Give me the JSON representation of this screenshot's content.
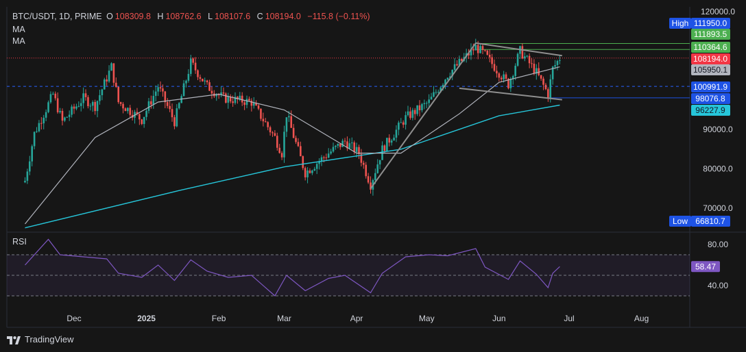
{
  "header": {
    "symbol": "BTC/USDT, 1D, PRIME",
    "o_label": "O",
    "o_val": "108309.8",
    "h_label": "H",
    "h_val": "108762.6",
    "l_label": "L",
    "l_val": "108107.6",
    "c_label": "C",
    "c_val": "108194.0",
    "change": "−115.8 (−0.11%)",
    "ma1": "MA",
    "ma2": "MA"
  },
  "rsi_label": "RSI",
  "footer": {
    "brand": "TradingView",
    "logo": "tradingview-logo"
  },
  "colors": {
    "bg": "#161616",
    "up": "#26a69a",
    "down": "#ef5350",
    "ma_fast": "#b2b5be",
    "ma_slow": "#26c6da",
    "rsi": "#7e57c2",
    "trend": "#8f8f8f",
    "price_label": "#f23645",
    "high_label": "#1e53e5",
    "green_label": "#4caf50"
  },
  "chart_data": [
    {
      "type": "candlestick",
      "title": "BTC/USDT, 1D, PRIME",
      "ylim": [
        65000,
        122000
      ],
      "y_ticks": [
        "120000.0",
        "90000.0",
        "80000.0",
        "70000.0"
      ],
      "x_ticks": [
        "Dec",
        "2025",
        "Feb",
        "Mar",
        "Apr",
        "May",
        "Jun",
        "Jul",
        "Aug"
      ],
      "close_path": [
        [
          "2024-11-10",
          77000
        ],
        [
          "2024-11-14",
          89000
        ],
        [
          "2024-11-22",
          99000
        ],
        [
          "2024-11-26",
          92000
        ],
        [
          "2024-12-05",
          98000
        ],
        [
          "2024-12-10",
          96000
        ],
        [
          "2024-12-17",
          106000
        ],
        [
          "2024-12-20",
          97000
        ],
        [
          "2024-12-30",
          92500
        ],
        [
          "2025-01-06",
          101000
        ],
        [
          "2025-01-13",
          92000
        ],
        [
          "2025-01-20",
          107000
        ],
        [
          "2025-01-27",
          101000
        ],
        [
          "2025-02-03",
          98000
        ],
        [
          "2025-02-15",
          97000
        ],
        [
          "2025-02-25",
          88000
        ],
        [
          "2025-02-28",
          84000
        ],
        [
          "2025-03-02",
          94000
        ],
        [
          "2025-03-10",
          79000
        ],
        [
          "2025-03-20",
          84000
        ],
        [
          "2025-03-27",
          87000
        ],
        [
          "2025-04-02",
          84000
        ],
        [
          "2025-04-07",
          76000
        ],
        [
          "2025-04-12",
          85000
        ],
        [
          "2025-04-22",
          93000
        ],
        [
          "2025-05-02",
          97000
        ],
        [
          "2025-05-10",
          104000
        ],
        [
          "2025-05-22",
          111000
        ],
        [
          "2025-05-26",
          109000
        ],
        [
          "2025-06-05",
          101500
        ],
        [
          "2025-06-10",
          110000
        ],
        [
          "2025-06-17",
          104500
        ],
        [
          "2025-06-22",
          99000
        ],
        [
          "2025-06-24",
          105500
        ],
        [
          "2025-06-27",
          108194
        ]
      ],
      "ma_fast_path": [
        [
          "2024-11-10",
          66000
        ],
        [
          "2024-12-10",
          88000
        ],
        [
          "2025-01-06",
          97000
        ],
        [
          "2025-02-01",
          99000
        ],
        [
          "2025-03-01",
          95000
        ],
        [
          "2025-04-01",
          84000
        ],
        [
          "2025-04-20",
          84000
        ],
        [
          "2025-05-15",
          94000
        ],
        [
          "2025-06-01",
          102000
        ],
        [
          "2025-06-27",
          105950.1
        ]
      ],
      "ma_slow_path": [
        [
          "2024-11-10",
          65000
        ],
        [
          "2025-01-15",
          74500
        ],
        [
          "2025-03-01",
          80500
        ],
        [
          "2025-04-20",
          85000
        ],
        [
          "2025-06-01",
          93500
        ],
        [
          "2025-06-27",
          96227.9
        ]
      ],
      "trend_lines": [
        {
          "from": [
            "2025-04-07",
            75000
          ],
          "to": [
            "2025-05-22",
            112000
          ]
        },
        {
          "from": [
            "2025-05-22",
            112000
          ],
          "to": [
            "2025-06-28",
            108800
          ]
        },
        {
          "from": [
            "2025-05-15",
            100500
          ],
          "to": [
            "2025-06-28",
            97600
          ]
        }
      ],
      "h_lines": [
        {
          "value": 110364.6,
          "color": "#4caf50",
          "label_from": "2025-05-22"
        },
        {
          "value": 111893.5,
          "color": "#4caf50",
          "label_from": "2025-05-22"
        },
        {
          "value": 98076.8,
          "color": "#1e53e5",
          "label_from": "2025-06-22"
        },
        {
          "value": 100991.9,
          "color": "#2962ff",
          "dashed": true
        },
        {
          "value": 108194.0,
          "color": "#f23645",
          "dotted": true
        }
      ],
      "price_labels": [
        {
          "value": "111950.0",
          "prefix": "High",
          "color": "#1e53e5"
        },
        {
          "value": "111893.5",
          "color": "#4caf50"
        },
        {
          "value": "110364.6",
          "color": "#4caf50"
        },
        {
          "value": "108194.0",
          "color": "#f23645"
        },
        {
          "value": "105950.1",
          "color": "#b2b5be"
        },
        {
          "value": "100991.9",
          "color": "#1e53e5"
        },
        {
          "value": "98076.8",
          "color": "#1e53e5"
        },
        {
          "value": "96227.9",
          "color": "#26c6da"
        },
        {
          "value": "66810.7",
          "prefix": "Low",
          "color": "#1e53e5"
        }
      ]
    },
    {
      "type": "line",
      "title": "RSI",
      "ylim": [
        20,
        90
      ],
      "levels": [
        70,
        50,
        30
      ],
      "y_ticks": [
        "80.00",
        "58.47",
        "40.00"
      ],
      "values_path": [
        [
          "2024-11-10",
          60
        ],
        [
          "2024-11-20",
          85
        ],
        [
          "2024-11-25",
          70
        ],
        [
          "2024-12-05",
          68
        ],
        [
          "2024-12-15",
          66
        ],
        [
          "2024-12-20",
          52
        ],
        [
          "2024-12-30",
          48
        ],
        [
          "2025-01-06",
          60
        ],
        [
          "2025-01-13",
          45
        ],
        [
          "2025-01-20",
          65
        ],
        [
          "2025-01-27",
          54
        ],
        [
          "2025-02-05",
          48
        ],
        [
          "2025-02-15",
          50
        ],
        [
          "2025-02-25",
          30
        ],
        [
          "2025-03-02",
          50
        ],
        [
          "2025-03-10",
          35
        ],
        [
          "2025-03-20",
          47
        ],
        [
          "2025-03-27",
          50
        ],
        [
          "2025-04-07",
          33
        ],
        [
          "2025-04-12",
          52
        ],
        [
          "2025-04-22",
          68
        ],
        [
          "2025-05-02",
          70
        ],
        [
          "2025-05-10",
          69
        ],
        [
          "2025-05-22",
          76
        ],
        [
          "2025-05-26",
          58
        ],
        [
          "2025-06-05",
          46
        ],
        [
          "2025-06-10",
          64
        ],
        [
          "2025-06-17",
          51
        ],
        [
          "2025-06-22",
          38
        ],
        [
          "2025-06-24",
          52
        ],
        [
          "2025-06-27",
          58.47
        ]
      ]
    }
  ]
}
